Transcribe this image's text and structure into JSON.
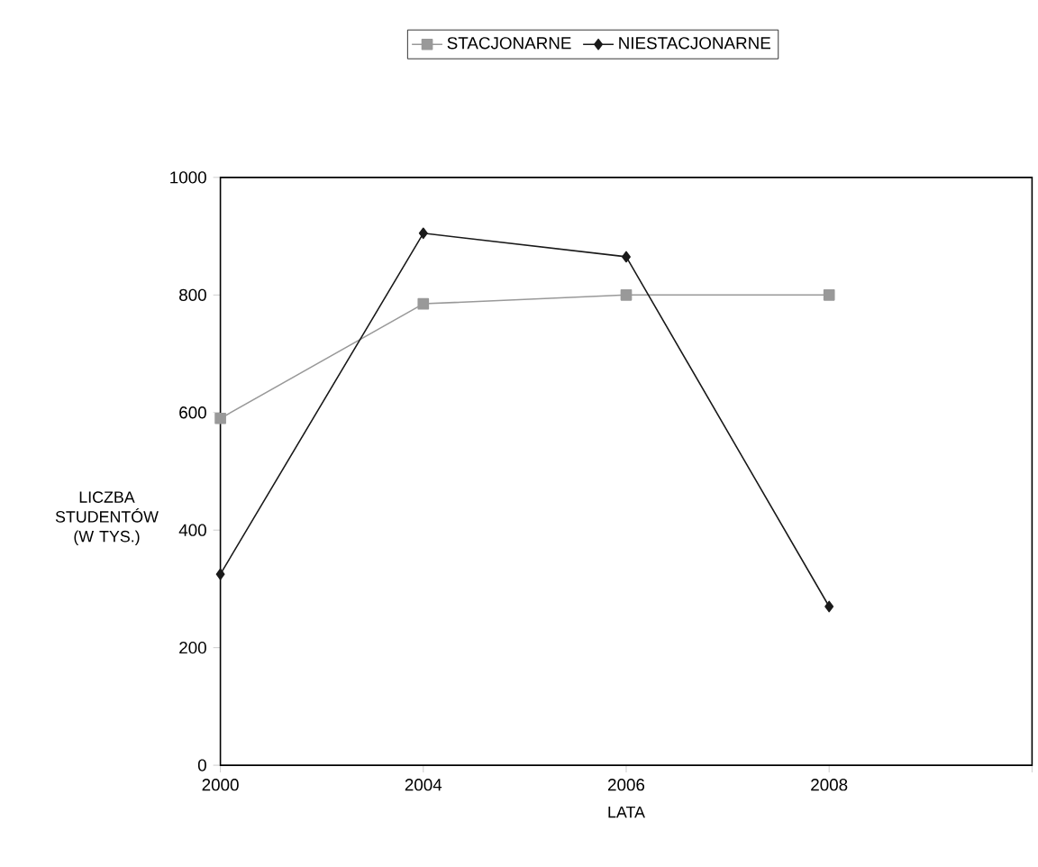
{
  "chart_data": {
    "type": "line",
    "xlabel": "LATA",
    "ylabel": "LICZBA STUDENTÓW (W TYS.)",
    "categories": [
      "2000",
      "2004",
      "2006",
      "2008",
      null
    ],
    "series": [
      {
        "name": "STACJONARNE",
        "color": "#999999",
        "marker": "square",
        "values": [
          590,
          785,
          800,
          800,
          null
        ]
      },
      {
        "name": "NIESTACJONARNE",
        "color": "#1a1a1a",
        "marker": "diamond",
        "values": [
          325,
          905,
          865,
          270,
          null
        ]
      }
    ],
    "ylim": [
      0,
      1000
    ],
    "yticks": [
      0,
      200,
      400,
      600,
      800,
      1000
    ],
    "grid": false,
    "legend": "top",
    "line_style": "solid"
  }
}
